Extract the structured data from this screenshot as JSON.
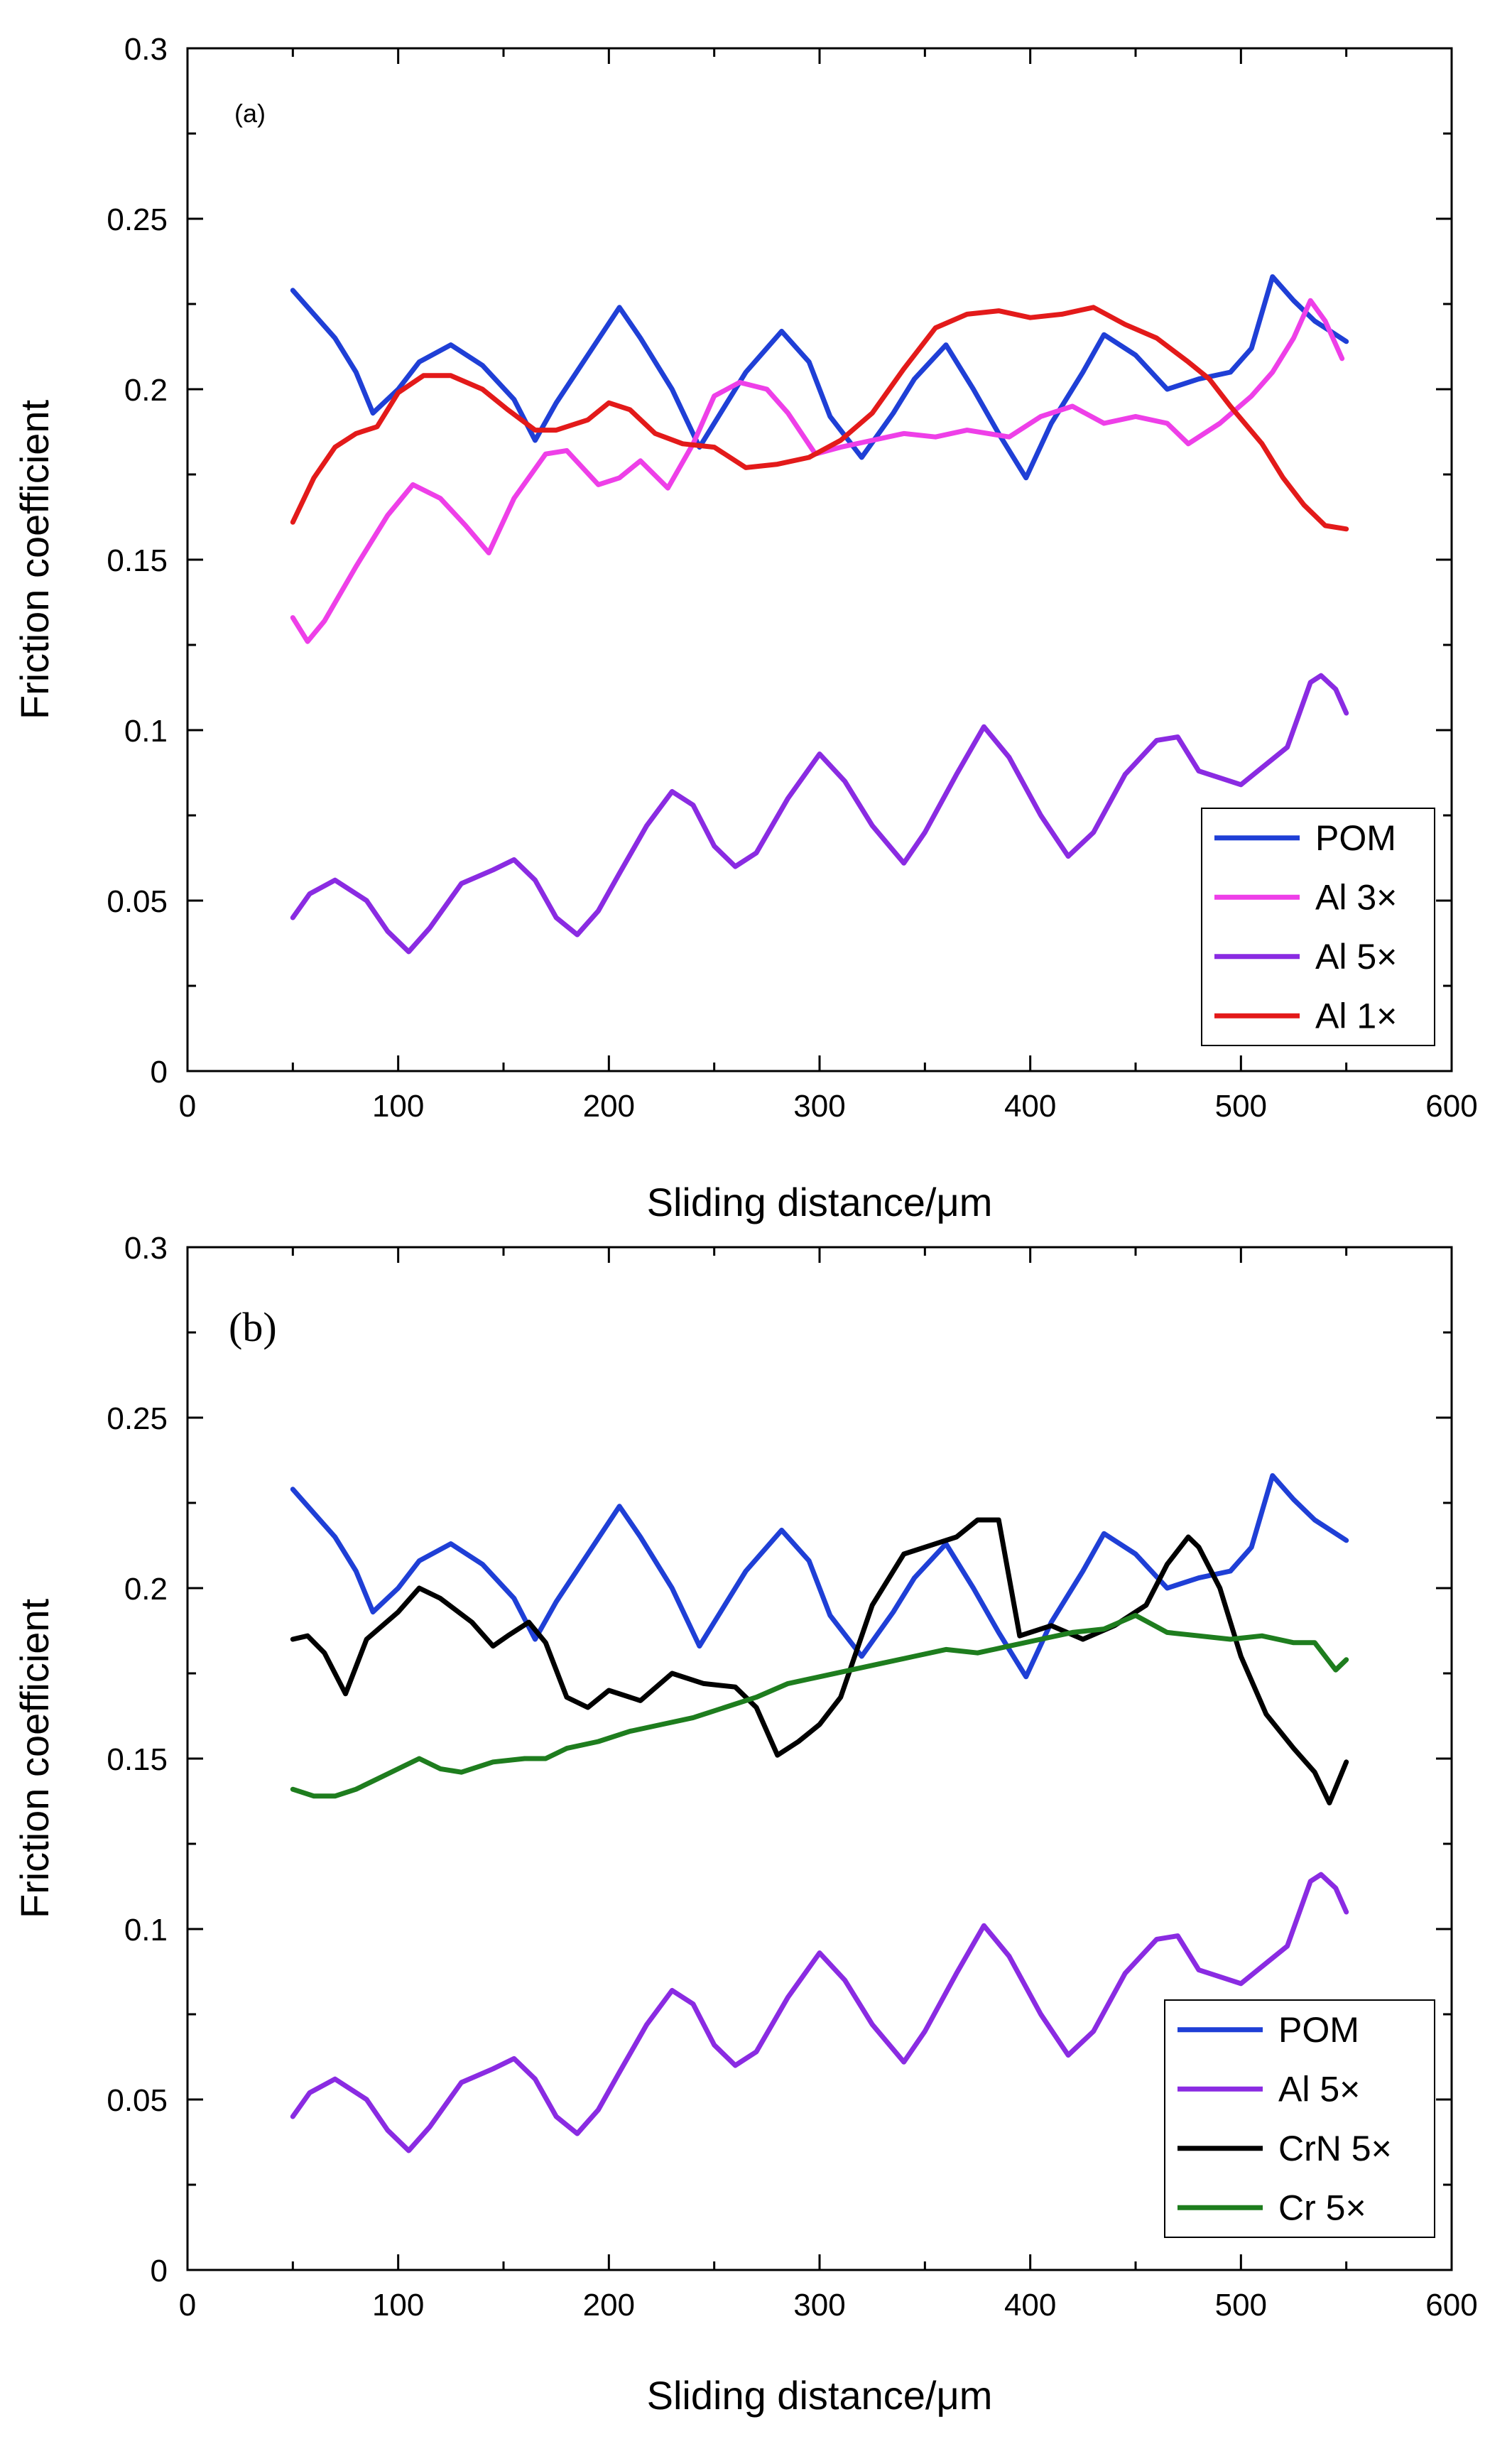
{
  "chart_data": [
    {
      "type": "line",
      "panel_label": "(a)",
      "xlabel": "Sliding distance/μm",
      "ylabel": "Friction coefficient",
      "xlim": [
        0,
        600
      ],
      "ylim": [
        0,
        0.3
      ],
      "xticks": [
        "0",
        "100",
        "200",
        "300",
        "400",
        "500",
        "600"
      ],
      "yticks": [
        "0",
        "0.05",
        "0.1",
        "0.15",
        "0.2",
        "0.25",
        "0.3"
      ],
      "legend_position": "bottom-right",
      "series": [
        {
          "name": "POM",
          "color": "#1f3fd6",
          "x": [
            50,
            60,
            70,
            80,
            88,
            100,
            110,
            125,
            140,
            155,
            165,
            175,
            190,
            205,
            215,
            230,
            243,
            255,
            265,
            282,
            295,
            305,
            320,
            335,
            345,
            360,
            373,
            385,
            398,
            410,
            425,
            435,
            450,
            465,
            480,
            495,
            505,
            515,
            525,
            535,
            550
          ],
          "y": [
            0.229,
            0.222,
            0.215,
            0.205,
            0.193,
            0.2,
            0.208,
            0.213,
            0.207,
            0.197,
            0.185,
            0.196,
            0.21,
            0.224,
            0.215,
            0.2,
            0.183,
            0.195,
            0.205,
            0.217,
            0.208,
            0.192,
            0.18,
            0.193,
            0.203,
            0.213,
            0.2,
            0.187,
            0.174,
            0.19,
            0.205,
            0.216,
            0.21,
            0.2,
            0.203,
            0.205,
            0.212,
            0.233,
            0.226,
            0.22,
            0.214
          ]
        },
        {
          "name": "Al 3×",
          "color": "#ee3fe8",
          "x": [
            50,
            57,
            65,
            80,
            95,
            107,
            120,
            132,
            143,
            155,
            170,
            180,
            195,
            205,
            215,
            228,
            240,
            250,
            262,
            275,
            285,
            298,
            310,
            325,
            340,
            355,
            370,
            390,
            405,
            420,
            435,
            450,
            465,
            475,
            490,
            505,
            515,
            525,
            533,
            540,
            548
          ],
          "y": [
            0.133,
            0.126,
            0.132,
            0.148,
            0.163,
            0.172,
            0.168,
            0.16,
            0.152,
            0.168,
            0.181,
            0.182,
            0.172,
            0.174,
            0.179,
            0.171,
            0.184,
            0.198,
            0.202,
            0.2,
            0.193,
            0.181,
            0.183,
            0.185,
            0.187,
            0.186,
            0.188,
            0.186,
            0.192,
            0.195,
            0.19,
            0.192,
            0.19,
            0.184,
            0.19,
            0.198,
            0.205,
            0.215,
            0.226,
            0.22,
            0.209
          ]
        },
        {
          "name": "Al 5×",
          "color": "#8a2be2",
          "x": [
            50,
            58,
            70,
            85,
            95,
            105,
            115,
            130,
            145,
            155,
            165,
            175,
            185,
            195,
            205,
            218,
            230,
            240,
            250,
            260,
            270,
            285,
            300,
            312,
            325,
            340,
            350,
            365,
            378,
            390,
            405,
            418,
            430,
            445,
            460,
            470,
            480,
            490,
            500,
            512,
            522,
            533,
            538,
            545,
            550
          ],
          "y": [
            0.045,
            0.052,
            0.056,
            0.05,
            0.041,
            0.035,
            0.042,
            0.055,
            0.059,
            0.062,
            0.056,
            0.045,
            0.04,
            0.047,
            0.058,
            0.072,
            0.082,
            0.078,
            0.066,
            0.06,
            0.064,
            0.08,
            0.093,
            0.085,
            0.072,
            0.061,
            0.07,
            0.087,
            0.101,
            0.092,
            0.075,
            0.063,
            0.07,
            0.087,
            0.097,
            0.098,
            0.088,
            0.086,
            0.084,
            0.09,
            0.095,
            0.114,
            0.116,
            0.112,
            0.105
          ]
        },
        {
          "name": "Al 1×",
          "color": "#e31a1a",
          "x": [
            50,
            60,
            70,
            80,
            90,
            100,
            112,
            125,
            140,
            152,
            165,
            175,
            190,
            200,
            210,
            222,
            235,
            250,
            265,
            280,
            295,
            310,
            325,
            340,
            355,
            370,
            385,
            400,
            415,
            430,
            445,
            460,
            475,
            485,
            495,
            510,
            520,
            530,
            540,
            550
          ],
          "y": [
            0.161,
            0.174,
            0.183,
            0.187,
            0.189,
            0.199,
            0.204,
            0.204,
            0.2,
            0.194,
            0.188,
            0.188,
            0.191,
            0.196,
            0.194,
            0.187,
            0.184,
            0.183,
            0.177,
            0.178,
            0.18,
            0.185,
            0.193,
            0.206,
            0.218,
            0.222,
            0.223,
            0.221,
            0.222,
            0.224,
            0.219,
            0.215,
            0.208,
            0.203,
            0.195,
            0.184,
            0.174,
            0.166,
            0.16,
            0.159
          ]
        }
      ]
    },
    {
      "type": "line",
      "panel_label": "(b)",
      "xlabel": "Sliding distance/μm",
      "ylabel": "Friction coefficient",
      "xlim": [
        0,
        600
      ],
      "ylim": [
        0,
        0.3
      ],
      "xticks": [
        "0",
        "100",
        "200",
        "300",
        "400",
        "500",
        "600"
      ],
      "yticks": [
        "0",
        "0.05",
        "0.1",
        "0.15",
        "0.2",
        "0.25",
        "0.3"
      ],
      "legend_position": "bottom-right",
      "series": [
        {
          "name": "POM",
          "color": "#1f3fd6",
          "x": [
            50,
            60,
            70,
            80,
            88,
            100,
            110,
            125,
            140,
            155,
            165,
            175,
            190,
            205,
            215,
            230,
            243,
            255,
            265,
            282,
            295,
            305,
            320,
            335,
            345,
            360,
            373,
            385,
            398,
            410,
            425,
            435,
            450,
            465,
            480,
            495,
            505,
            515,
            525,
            535,
            550
          ],
          "y": [
            0.229,
            0.222,
            0.215,
            0.205,
            0.193,
            0.2,
            0.208,
            0.213,
            0.207,
            0.197,
            0.185,
            0.196,
            0.21,
            0.224,
            0.215,
            0.2,
            0.183,
            0.195,
            0.205,
            0.217,
            0.208,
            0.192,
            0.18,
            0.193,
            0.203,
            0.213,
            0.2,
            0.187,
            0.174,
            0.19,
            0.205,
            0.216,
            0.21,
            0.2,
            0.203,
            0.205,
            0.212,
            0.233,
            0.226,
            0.22,
            0.214
          ]
        },
        {
          "name": "Al 5×",
          "color": "#8a2be2",
          "x": [
            50,
            58,
            70,
            85,
            95,
            105,
            115,
            130,
            145,
            155,
            165,
            175,
            185,
            195,
            205,
            218,
            230,
            240,
            250,
            260,
            270,
            285,
            300,
            312,
            325,
            340,
            350,
            365,
            378,
            390,
            405,
            418,
            430,
            445,
            460,
            470,
            480,
            490,
            500,
            512,
            522,
            533,
            538,
            545,
            550
          ],
          "y": [
            0.045,
            0.052,
            0.056,
            0.05,
            0.041,
            0.035,
            0.042,
            0.055,
            0.059,
            0.062,
            0.056,
            0.045,
            0.04,
            0.047,
            0.058,
            0.072,
            0.082,
            0.078,
            0.066,
            0.06,
            0.064,
            0.08,
            0.093,
            0.085,
            0.072,
            0.061,
            0.07,
            0.087,
            0.101,
            0.092,
            0.075,
            0.063,
            0.07,
            0.087,
            0.097,
            0.098,
            0.088,
            0.086,
            0.084,
            0.09,
            0.095,
            0.114,
            0.116,
            0.112,
            0.105
          ]
        },
        {
          "name": "CrN 5×",
          "color": "#000000",
          "x": [
            50,
            57,
            65,
            75,
            85,
            100,
            110,
            120,
            135,
            145,
            152,
            162,
            170,
            180,
            190,
            200,
            215,
            230,
            245,
            260,
            270,
            280,
            290,
            300,
            310,
            325,
            340,
            355,
            365,
            375,
            385,
            395,
            410,
            425,
            440,
            455,
            465,
            475,
            480,
            490,
            500,
            512,
            525,
            535,
            542,
            550
          ],
          "y": [
            0.185,
            0.186,
            0.181,
            0.169,
            0.185,
            0.193,
            0.2,
            0.197,
            0.19,
            0.183,
            0.186,
            0.19,
            0.184,
            0.168,
            0.165,
            0.17,
            0.167,
            0.175,
            0.172,
            0.171,
            0.165,
            0.151,
            0.155,
            0.16,
            0.168,
            0.195,
            0.21,
            0.213,
            0.215,
            0.22,
            0.22,
            0.186,
            0.189,
            0.185,
            0.189,
            0.195,
            0.207,
            0.215,
            0.212,
            0.2,
            0.18,
            0.163,
            0.153,
            0.146,
            0.137,
            0.149
          ]
        },
        {
          "name": "Cr 5×",
          "color": "#1e7d1e",
          "x": [
            50,
            60,
            70,
            80,
            90,
            100,
            110,
            120,
            130,
            145,
            160,
            170,
            180,
            195,
            210,
            225,
            240,
            255,
            270,
            285,
            300,
            315,
            330,
            345,
            360,
            375,
            390,
            405,
            420,
            435,
            450,
            465,
            480,
            495,
            510,
            525,
            535,
            545,
            550
          ],
          "y": [
            0.141,
            0.139,
            0.139,
            0.141,
            0.144,
            0.147,
            0.15,
            0.147,
            0.146,
            0.149,
            0.15,
            0.15,
            0.153,
            0.155,
            0.158,
            0.16,
            0.162,
            0.165,
            0.168,
            0.172,
            0.174,
            0.176,
            0.178,
            0.18,
            0.182,
            0.181,
            0.183,
            0.185,
            0.187,
            0.188,
            0.192,
            0.187,
            0.186,
            0.185,
            0.186,
            0.184,
            0.184,
            0.176,
            0.179
          ]
        }
      ]
    }
  ]
}
